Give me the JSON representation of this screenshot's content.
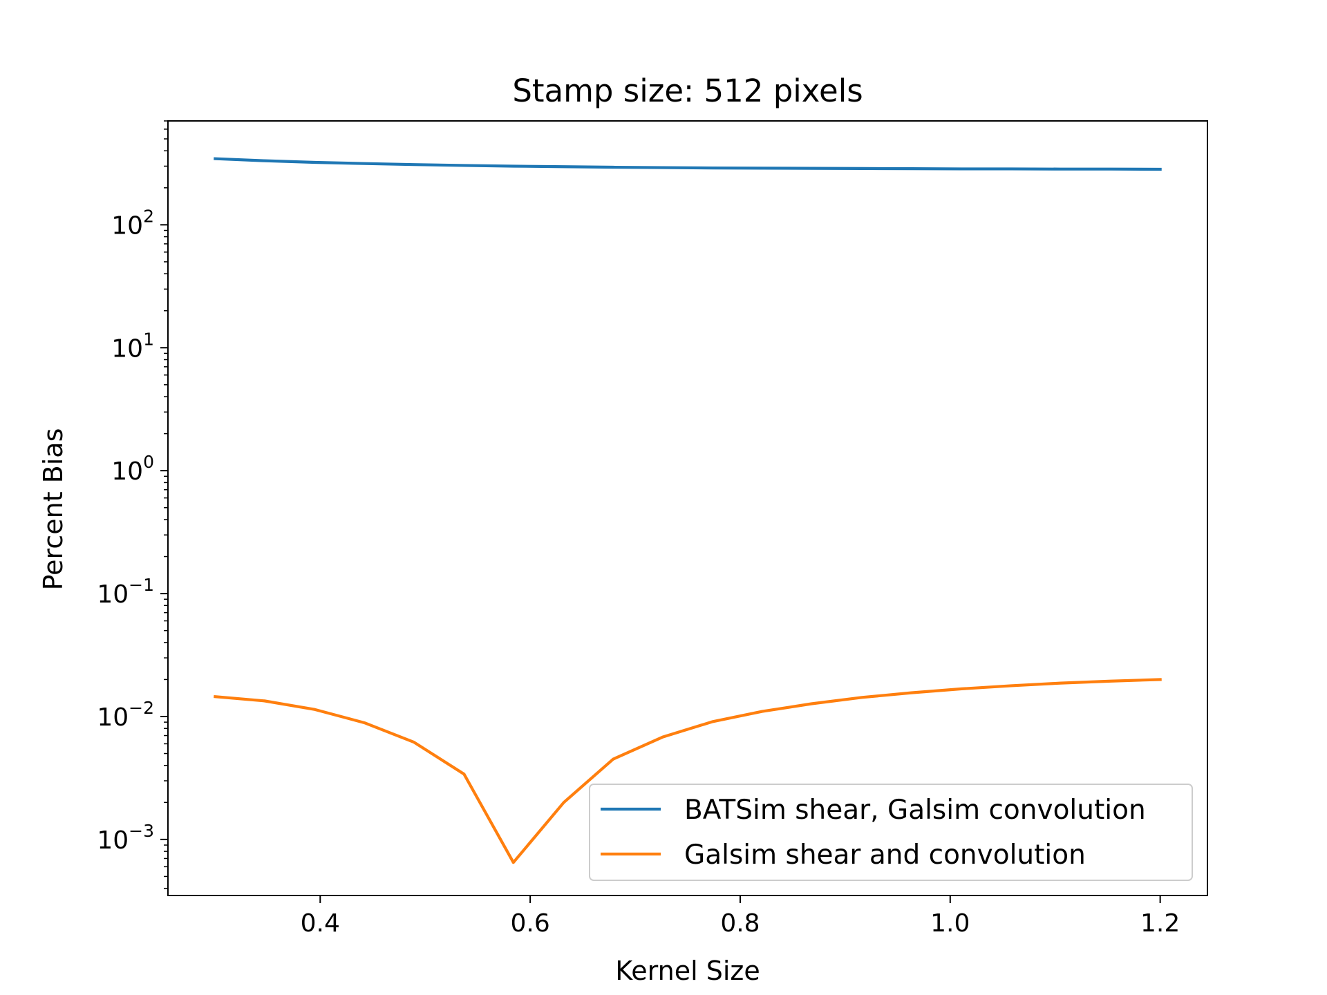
{
  "chart_data": {
    "type": "line",
    "title": "Stamp size: 512 pixels",
    "xlabel": "Kernel Size",
    "ylabel": "Percent Bias",
    "yscale": "log",
    "xlim": [
      0.255,
      1.245
    ],
    "ylim": [
      0.00035,
      700
    ],
    "x_ticks": [
      0.4,
      0.6,
      0.8,
      1.0,
      1.2
    ],
    "x_tick_labels": [
      "0.4",
      "0.6",
      "0.8",
      "1.0",
      "1.2"
    ],
    "y_ticks": [
      0.001,
      0.01,
      0.1,
      1,
      10,
      100
    ],
    "y_tick_labels": [
      {
        "base": "10",
        "exp": "−3"
      },
      {
        "base": "10",
        "exp": "−2"
      },
      {
        "base": "10",
        "exp": "−1"
      },
      {
        "base": "10",
        "exp": "0"
      },
      {
        "base": "10",
        "exp": "1"
      },
      {
        "base": "10",
        "exp": "2"
      }
    ],
    "grid": false,
    "legend_position": "lower-right",
    "series": [
      {
        "name": "BATSim shear, Galsim convolution",
        "color": "#1f77b4",
        "x": [
          0.3,
          0.347,
          0.395,
          0.442,
          0.489,
          0.537,
          0.584,
          0.632,
          0.679,
          0.726,
          0.774,
          0.821,
          0.868,
          0.916,
          0.963,
          1.011,
          1.058,
          1.105,
          1.153,
          1.2
        ],
        "y": [
          345,
          332,
          322,
          315,
          309,
          304,
          300,
          297,
          294,
          292,
          290,
          289,
          288,
          287,
          286,
          285,
          285,
          284,
          284,
          283
        ]
      },
      {
        "name": "Galsim shear and convolution",
        "color": "#ff7f0e",
        "x": [
          0.3,
          0.347,
          0.395,
          0.442,
          0.489,
          0.537,
          0.584,
          0.632,
          0.679,
          0.726,
          0.774,
          0.821,
          0.868,
          0.916,
          0.963,
          1.011,
          1.058,
          1.105,
          1.153,
          1.2
        ],
        "y": [
          0.0145,
          0.0134,
          0.0114,
          0.0089,
          0.0062,
          0.0034,
          0.00065,
          0.002,
          0.0045,
          0.0068,
          0.0091,
          0.011,
          0.0127,
          0.0143,
          0.0156,
          0.0168,
          0.0178,
          0.0187,
          0.0194,
          0.02
        ]
      }
    ]
  }
}
